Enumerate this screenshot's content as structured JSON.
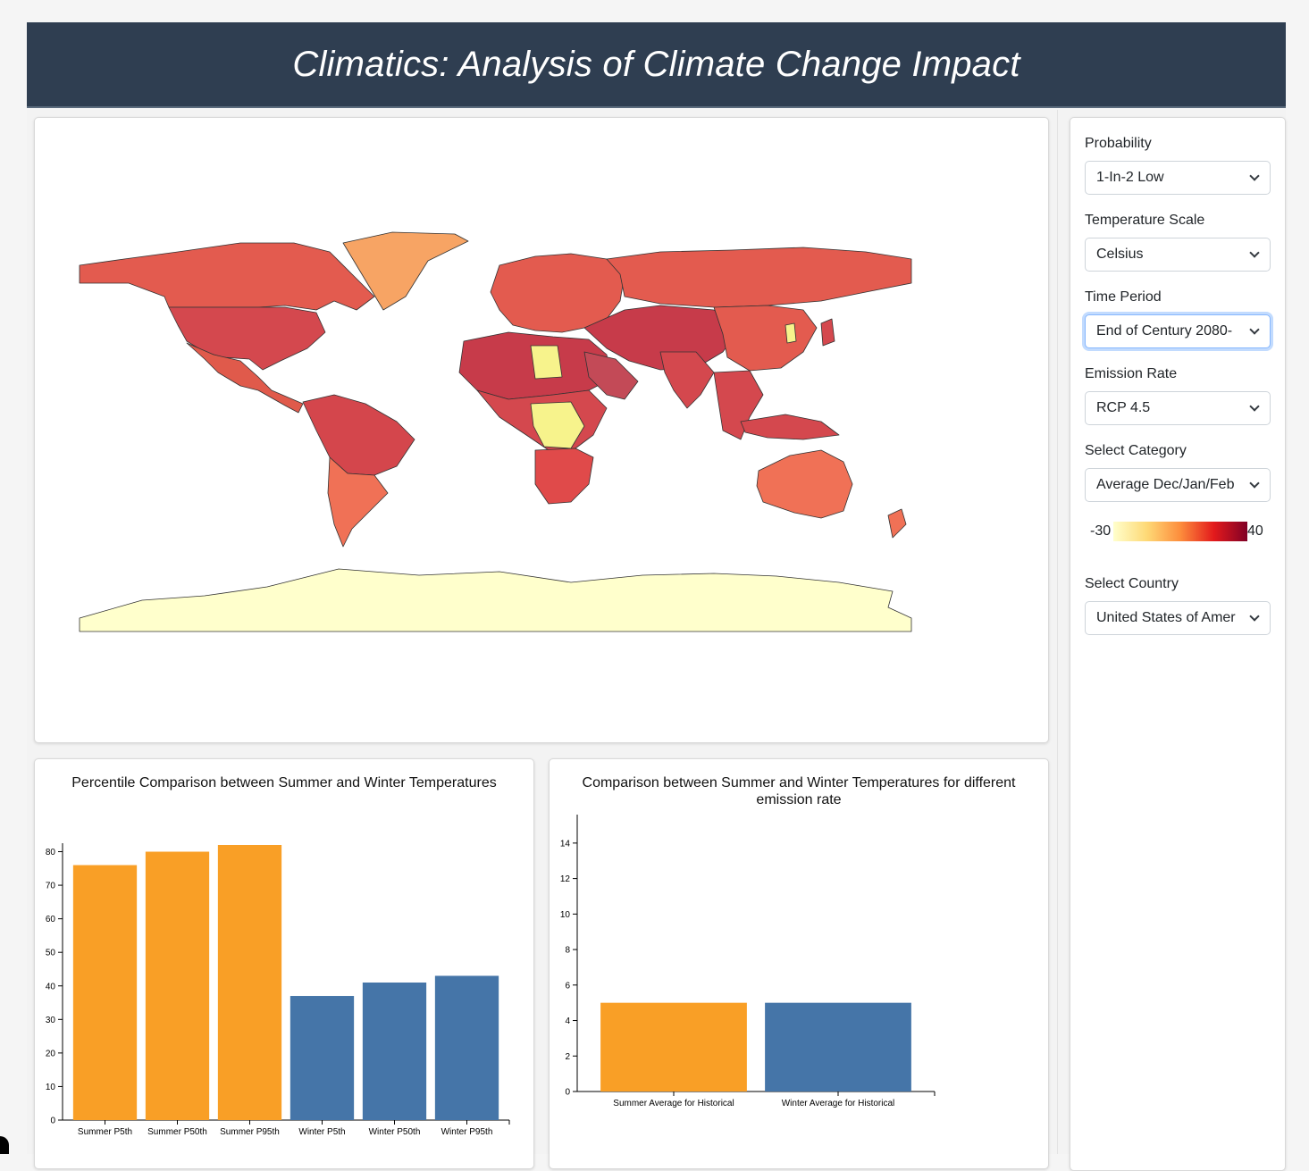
{
  "header": {
    "title": "Climatics: Analysis of Climate Change Impact"
  },
  "controls": {
    "probability": {
      "label": "Probability",
      "value": "1-In-2 Low"
    },
    "temperature_scale": {
      "label": "Temperature Scale",
      "value": "Celsius"
    },
    "time_period": {
      "label": "Time Period",
      "value": "End of Century 2080-"
    },
    "emission_rate": {
      "label": "Emission Rate",
      "value": "RCP 4.5"
    },
    "category": {
      "label": "Select Category",
      "value": "Average Dec/Jan/Feb"
    },
    "legend": {
      "min": "-30",
      "max": "40"
    },
    "country": {
      "label": "Select Country",
      "value": "United States of Amer"
    }
  },
  "colors": {
    "summer": "#f99f26",
    "winter": "#4575a8",
    "header_bg": "#2f3e51"
  },
  "chart_data": [
    {
      "type": "bar",
      "title": "Percentile Comparison between Summer and Winter Temperatures",
      "categories": [
        "Summer P5th",
        "Summer P50th",
        "Summer P95th",
        "Winter P5th",
        "Winter P50th",
        "Winter P95th"
      ],
      "values": [
        76,
        80,
        82,
        37,
        41,
        43
      ],
      "bar_colors": [
        "summer",
        "summer",
        "summer",
        "winter",
        "winter",
        "winter"
      ],
      "ylim": [
        0,
        82
      ],
      "yticks": [
        "0",
        "10",
        "20",
        "30",
        "40",
        "50",
        "60",
        "70",
        "80"
      ],
      "grid": false
    },
    {
      "type": "bar",
      "title": "Comparison between Summer and Winter Temperatures for different emission rate",
      "categories": [
        "Summer Average for Historical",
        "Winter Average for Historical"
      ],
      "values": [
        5,
        5
      ],
      "bar_colors": [
        "summer",
        "winter"
      ],
      "ylim": [
        0,
        15
      ],
      "yticks": [
        "0",
        "2",
        "4",
        "6",
        "8",
        "10",
        "12",
        "14"
      ],
      "grid": false
    }
  ]
}
